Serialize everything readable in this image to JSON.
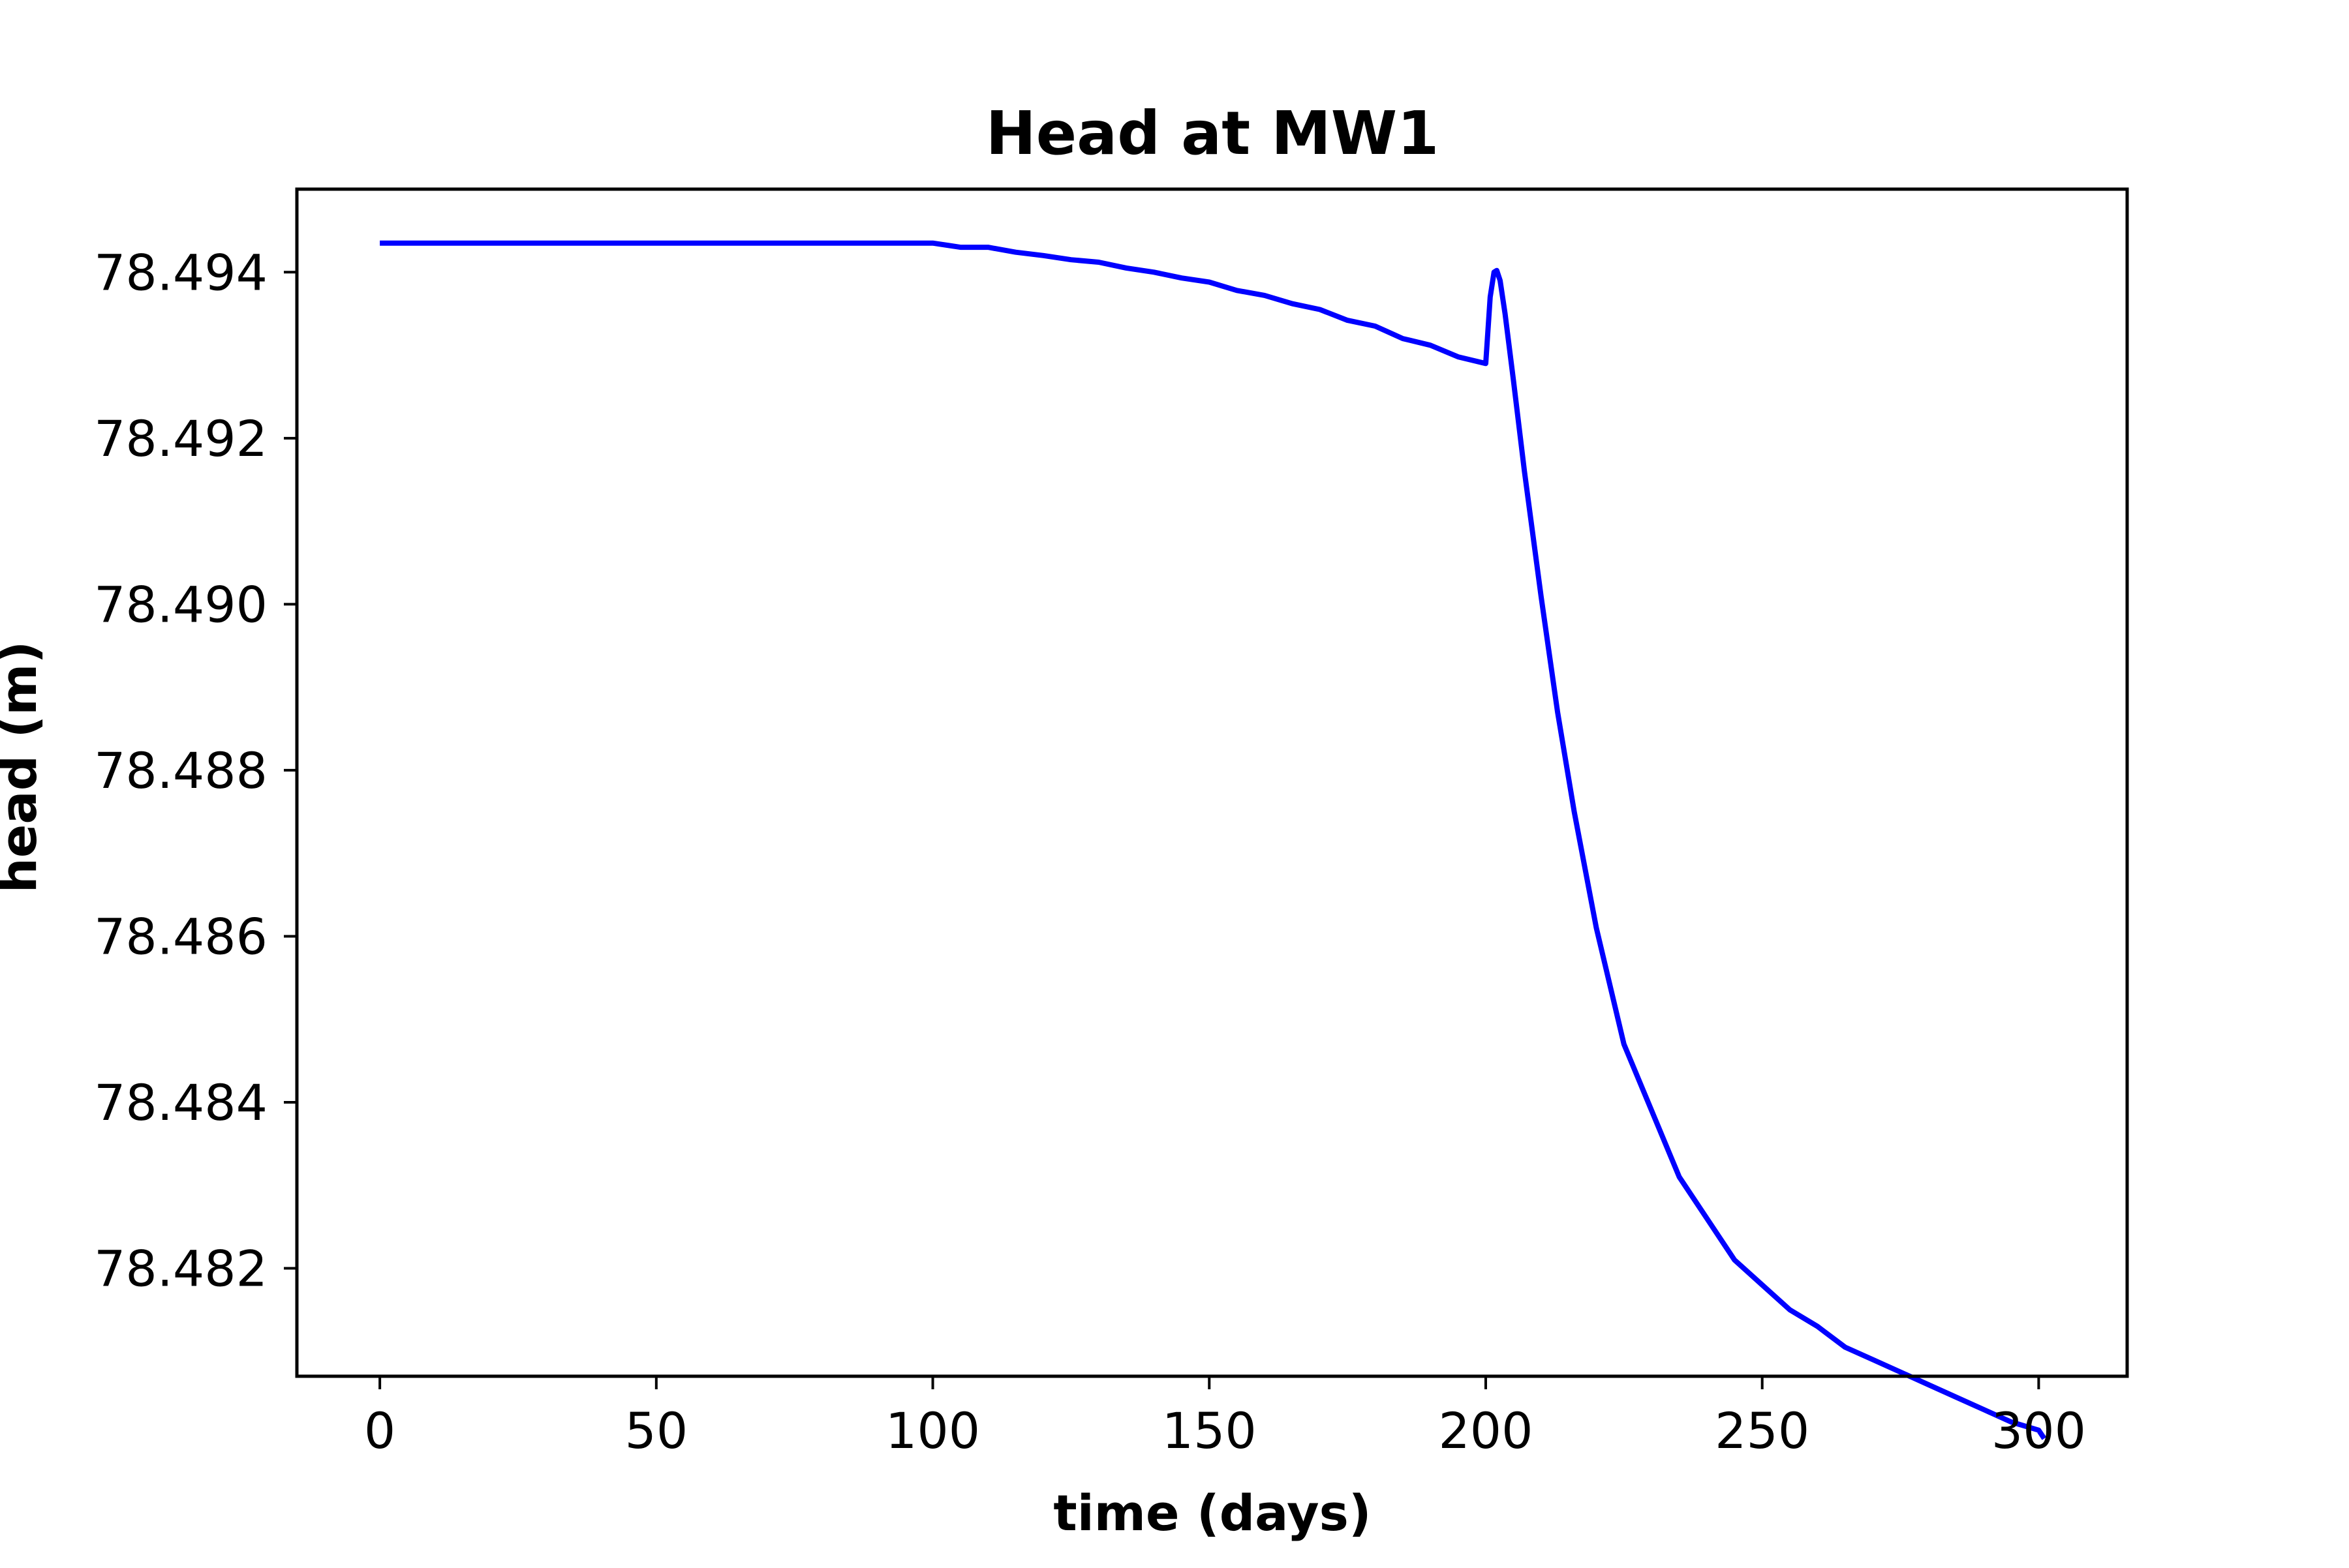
{
  "chart_data": {
    "type": "line",
    "title": "Head at MW1",
    "xlabel": "time (days)",
    "ylabel": "head (m)",
    "xlim": [
      -15,
      316
    ],
    "ylim": [
      78.4807,
      78.495
    ],
    "xticks": [
      0,
      50,
      100,
      150,
      200,
      250,
      300
    ],
    "xtick_labels": [
      "0",
      "50",
      "100",
      "150",
      "200",
      "250",
      "300"
    ],
    "yticks": [
      78.482,
      78.484,
      78.486,
      78.488,
      78.49,
      78.492,
      78.494
    ],
    "ytick_labels": [
      "78.482",
      "78.484",
      "78.486",
      "78.488",
      "78.490",
      "78.492",
      "78.494"
    ],
    "grid": false,
    "legend": "none",
    "series": [
      {
        "color": "#0000ff",
        "x": [
          0,
          20,
          40,
          60,
          80,
          100,
          103,
          105,
          110,
          115,
          120,
          125,
          130,
          135,
          140,
          145,
          150,
          155,
          160,
          165,
          170,
          175,
          180,
          185,
          190,
          195,
          200,
          200.8,
          201.5,
          202,
          202.6,
          203.5,
          205,
          207,
          210,
          213,
          216,
          220,
          225,
          230,
          235,
          240,
          245,
          250,
          255,
          260,
          265,
          270,
          275,
          280,
          285,
          290,
          295,
          300,
          301
        ],
        "y": [
          78.49435,
          78.49435,
          78.49435,
          78.49435,
          78.49435,
          78.49435,
          78.49432,
          78.4943,
          78.4943,
          78.49424,
          78.4942,
          78.49415,
          78.49412,
          78.49405,
          78.494,
          78.49393,
          78.49388,
          78.49378,
          78.49372,
          78.49362,
          78.49355,
          78.49342,
          78.49335,
          78.4932,
          78.49312,
          78.49298,
          78.4929,
          78.4937,
          78.494,
          78.49402,
          78.4939,
          78.4935,
          78.4927,
          78.4916,
          78.4901,
          78.4887,
          78.4875,
          78.4861,
          78.4847,
          78.4839,
          78.4831,
          78.4826,
          78.4821,
          78.4818,
          78.4815,
          78.4813,
          78.48105,
          78.4809,
          78.48075,
          78.4806,
          78.48045,
          78.4803,
          78.48015,
          78.48005,
          78.47995
        ]
      }
    ]
  }
}
